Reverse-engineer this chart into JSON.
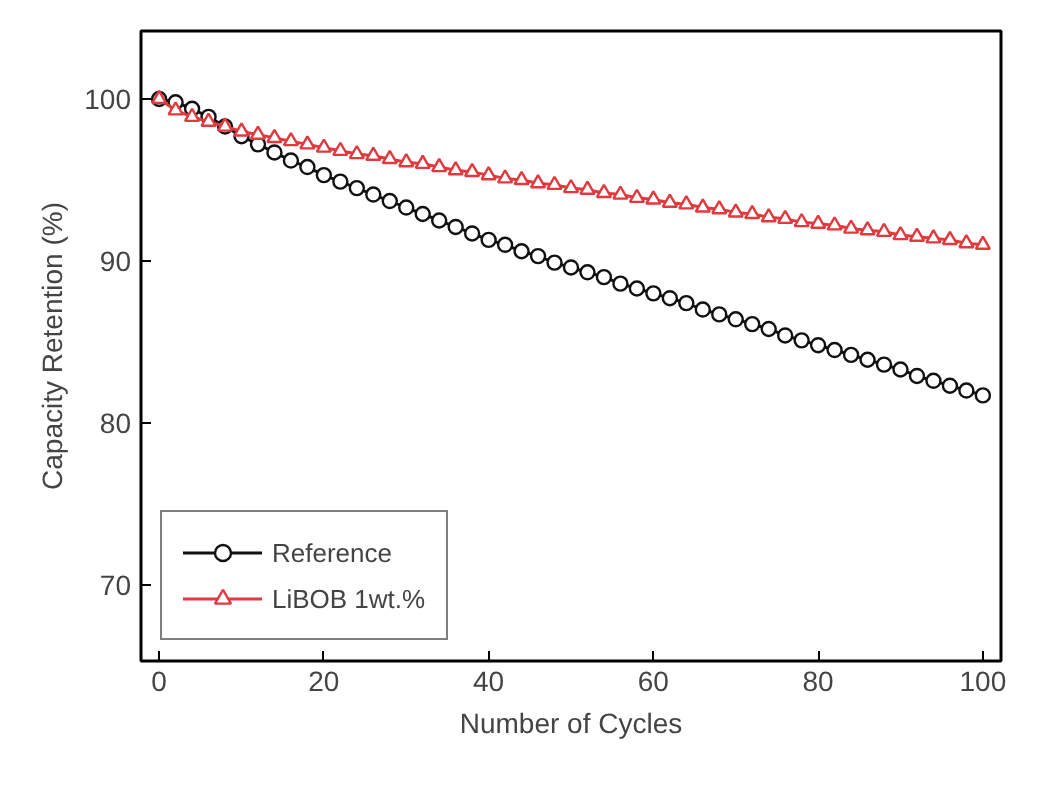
{
  "chart_data": {
    "type": "line",
    "xlabel": "Number of Cycles",
    "ylabel": "Capacity Retention (%)",
    "xlim": [
      -2.2,
      102.2
    ],
    "ylim": [
      65.3,
      104.2
    ],
    "xticks": [
      0,
      20,
      40,
      60,
      80,
      100
    ],
    "yticks": [
      70,
      80,
      90,
      100
    ],
    "grid": false,
    "legend": "bottom left",
    "line_style": "solid",
    "x": [
      0,
      2,
      4,
      6,
      8,
      10,
      12,
      14,
      16,
      18,
      20,
      22,
      24,
      26,
      28,
      30,
      32,
      34,
      36,
      38,
      40,
      42,
      44,
      46,
      48,
      50,
      52,
      54,
      56,
      58,
      60,
      62,
      64,
      66,
      68,
      70,
      72,
      74,
      76,
      78,
      80,
      82,
      84,
      86,
      88,
      90,
      92,
      94,
      96,
      98,
      100
    ],
    "series": [
      {
        "name": "Reference",
        "color": "#111111",
        "marker": "circle",
        "values": [
          100,
          99.8,
          99.4,
          98.9,
          98.3,
          97.7,
          97.2,
          96.7,
          96.2,
          95.8,
          95.3,
          94.9,
          94.5,
          94.1,
          93.7,
          93.3,
          92.9,
          92.5,
          92.1,
          91.7,
          91.3,
          91.0,
          90.6,
          90.3,
          89.9,
          89.6,
          89.3,
          89.0,
          88.6,
          88.3,
          88.0,
          87.7,
          87.4,
          87.0,
          86.7,
          86.4,
          86.1,
          85.8,
          85.4,
          85.1,
          84.8,
          84.5,
          84.2,
          83.9,
          83.6,
          83.3,
          82.9,
          82.6,
          82.3,
          82.0,
          81.7
        ]
      },
      {
        "name": "LiBOB 1wt.%",
        "color": "#e0393e",
        "marker": "triangle",
        "values": [
          100,
          99.3,
          98.9,
          98.6,
          98.3,
          98.0,
          97.8,
          97.6,
          97.4,
          97.2,
          97.0,
          96.8,
          96.6,
          96.5,
          96.3,
          96.1,
          96.0,
          95.8,
          95.6,
          95.5,
          95.3,
          95.1,
          95.0,
          94.8,
          94.7,
          94.5,
          94.4,
          94.2,
          94.1,
          93.9,
          93.8,
          93.6,
          93.5,
          93.3,
          93.2,
          93.0,
          92.9,
          92.7,
          92.6,
          92.4,
          92.3,
          92.2,
          92.0,
          91.9,
          91.8,
          91.6,
          91.5,
          91.4,
          91.3,
          91.1,
          91.0
        ]
      }
    ]
  }
}
